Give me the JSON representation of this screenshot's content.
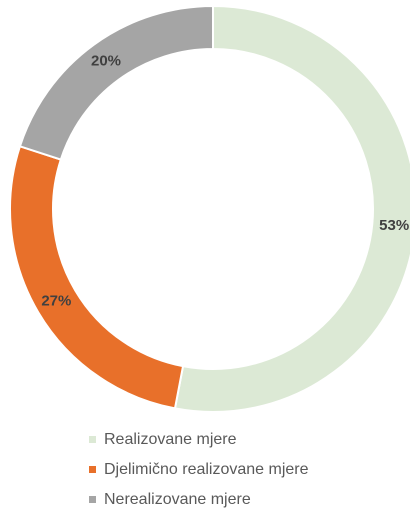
{
  "chart_data": {
    "type": "donut",
    "categories": [
      "Realizovane mjere",
      "Djelimično realizovane mjere",
      "Nerealizovane mjere"
    ],
    "values": [
      53,
      27,
      20
    ],
    "value_labels": [
      "53%",
      "27%",
      "20%"
    ],
    "colors": [
      "#dce9d5",
      "#e8702a",
      "#a5a5a5"
    ],
    "legend": "bottom"
  }
}
